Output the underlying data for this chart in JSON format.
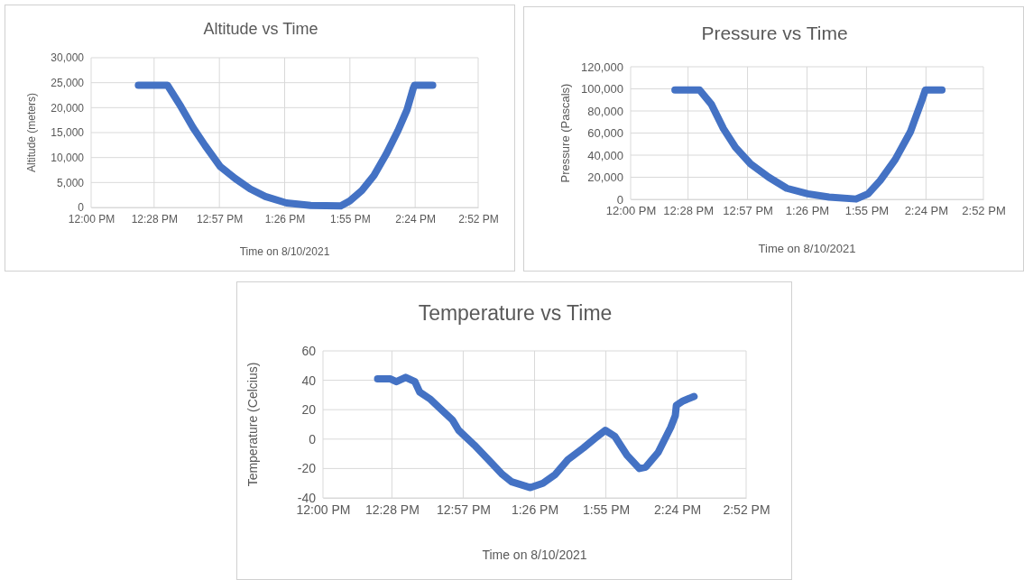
{
  "chart_data": [
    {
      "type": "line",
      "title": "Altitude vs Time",
      "xlabel": "Time on 8/10/2021",
      "ylabel": "Altitude (meters)",
      "grid": true,
      "marker": "none",
      "line_style": "solid",
      "xlim": [
        12,
        14.8667
      ],
      "xticks": [
        {
          "value": 12,
          "label": "12:00 PM"
        },
        {
          "value": 12.4667,
          "label": "12:28 PM"
        },
        {
          "value": 12.95,
          "label": "12:57 PM"
        },
        {
          "value": 13.4333,
          "label": "1:26 PM"
        },
        {
          "value": 13.9167,
          "label": "1:55 PM"
        },
        {
          "value": 14.4,
          "label": "2:24 PM"
        },
        {
          "value": 14.8667,
          "label": "2:52 PM"
        }
      ],
      "ylim": [
        0,
        30000
      ],
      "yticks": [
        {
          "value": 0,
          "label": "0"
        },
        {
          "value": 5000,
          "label": "5,000"
        },
        {
          "value": 10000,
          "label": "10,000"
        },
        {
          "value": 15000,
          "label": "15,000"
        },
        {
          "value": 20000,
          "label": "20,000"
        },
        {
          "value": 25000,
          "label": "25,000"
        },
        {
          "value": 30000,
          "label": "30,000"
        }
      ],
      "series": [
        {
          "color": "#4472c4",
          "x": [
            12.35,
            12.565,
            12.665,
            12.755,
            12.844,
            12.956,
            13.067,
            13.179,
            13.291,
            13.447,
            13.626,
            13.849,
            13.916,
            14.005,
            14.095,
            14.184,
            14.273,
            14.34,
            14.385,
            14.396,
            14.53
          ],
          "values": [
            24500,
            24500,
            20200,
            16000,
            12400,
            8200,
            5800,
            3700,
            2200,
            900,
            400,
            300,
            1300,
            3400,
            6400,
            10600,
            15400,
            19600,
            23800,
            24500,
            24500
          ]
        }
      ]
    },
    {
      "type": "line",
      "title": "Pressure vs Time",
      "xlabel": "Time on 8/10/2021",
      "ylabel": "Pressure (Pascals)",
      "grid": true,
      "marker": "none",
      "line_style": "solid",
      "xlim": [
        12,
        14.8667
      ],
      "xticks": [
        {
          "value": 12,
          "label": "12:00 PM"
        },
        {
          "value": 12.4667,
          "label": "12:28 PM"
        },
        {
          "value": 12.95,
          "label": "12:57 PM"
        },
        {
          "value": 13.4333,
          "label": "1:26 PM"
        },
        {
          "value": 13.9167,
          "label": "1:55 PM"
        },
        {
          "value": 14.4,
          "label": "2:24 PM"
        },
        {
          "value": 14.8667,
          "label": "2:52 PM"
        }
      ],
      "ylim": [
        0,
        120000
      ],
      "yticks": [
        {
          "value": 0,
          "label": "0"
        },
        {
          "value": 20000,
          "label": "20,000"
        },
        {
          "value": 40000,
          "label": "40,000"
        },
        {
          "value": 60000,
          "label": "60,000"
        },
        {
          "value": 80000,
          "label": "80,000"
        },
        {
          "value": 100000,
          "label": "100,000"
        },
        {
          "value": 120000,
          "label": "120,000"
        }
      ],
      "series": [
        {
          "color": "#4472c4",
          "x": [
            12.36,
            12.56,
            12.656,
            12.754,
            12.852,
            12.975,
            13.122,
            13.269,
            13.44,
            13.612,
            13.832,
            13.93,
            14.028,
            14.15,
            14.273,
            14.371,
            14.395,
            14.53
          ],
          "values": [
            99000,
            99000,
            86000,
            64000,
            47000,
            32000,
            20000,
            10000,
            5000,
            2000,
            300,
            5000,
            17000,
            36000,
            61000,
            91000,
            99000,
            99000
          ]
        }
      ]
    },
    {
      "type": "line",
      "title": "Temperature vs Time",
      "xlabel": "Time on 8/10/2021",
      "ylabel": "Temperature  (Celcius)",
      "grid": true,
      "marker": "none",
      "line_style": "solid",
      "xlim": [
        12,
        14.8667
      ],
      "xticks": [
        {
          "value": 12,
          "label": "12:00 PM"
        },
        {
          "value": 12.4667,
          "label": "12:28 PM"
        },
        {
          "value": 12.95,
          "label": "12:57 PM"
        },
        {
          "value": 13.4333,
          "label": "1:26 PM"
        },
        {
          "value": 13.9167,
          "label": "1:55 PM"
        },
        {
          "value": 14.4,
          "label": "2:24 PM"
        },
        {
          "value": 14.8667,
          "label": "2:52 PM"
        }
      ],
      "ylim": [
        -40,
        60
      ],
      "yticks": [
        -40,
        -20,
        0,
        20,
        40,
        60
      ],
      "series": [
        {
          "color": "#4472c4",
          "x": [
            12.37,
            12.454,
            12.497,
            12.56,
            12.623,
            12.655,
            12.729,
            12.792,
            12.877,
            12.919,
            13.025,
            13.13,
            13.215,
            13.278,
            13.342,
            13.405,
            13.49,
            13.574,
            13.659,
            13.764,
            13.849,
            13.912,
            13.976,
            14.06,
            14.144,
            14.187,
            14.271,
            14.356,
            14.387,
            14.394,
            14.44,
            14.514
          ],
          "values": [
            41,
            41,
            39,
            42,
            39,
            32,
            27,
            21,
            13,
            6,
            -4,
            -15,
            -24,
            -29,
            -31,
            -33,
            -30,
            -24,
            -14,
            -6,
            1,
            6,
            2,
            -11,
            -20,
            -19,
            -9,
            8,
            16,
            23,
            26,
            29
          ]
        }
      ]
    }
  ]
}
